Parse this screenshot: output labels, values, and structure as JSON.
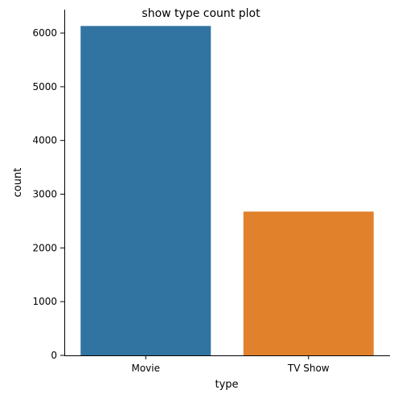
{
  "chart_data": {
    "type": "bar",
    "title": "show type count plot",
    "xlabel": "type",
    "ylabel": "count",
    "categories": [
      "Movie",
      "TV Show"
    ],
    "values": [
      6131,
      2676
    ],
    "ylim": [
      0,
      6435
    ],
    "yticks": [
      0,
      1000,
      2000,
      3000,
      4000,
      5000,
      6000
    ],
    "colors": [
      "#3274a1",
      "#e1812c"
    ],
    "grid": false,
    "legend": "none"
  }
}
